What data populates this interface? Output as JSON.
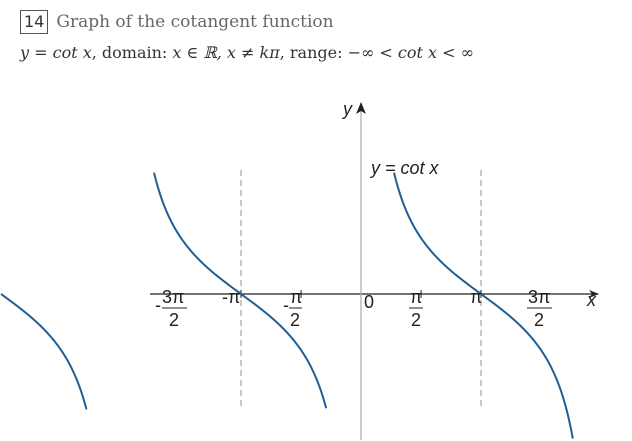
{
  "header": {
    "number": "14",
    "title": "Graph of the cotangent function"
  },
  "formula": {
    "part1": "y = cot x",
    "part2": ", domain: ",
    "part3": "x ∈ ℝ, x ≠ kπ",
    "part4": ", range: ",
    "part5": "−∞ < cot x < ∞"
  },
  "graph": {
    "axis_x_label": "x",
    "axis_y_label": "y",
    "curve_label": "y = cot x",
    "origin_label": "0",
    "neg_pi_label": "-π",
    "pi_label": "π",
    "neg_3pi_over_2": {
      "sign": "-",
      "num": "3π",
      "den": "2"
    },
    "neg_pi_over_2": {
      "sign": "-",
      "num": "π",
      "den": "2"
    },
    "pi_over_2": {
      "num": "π",
      "den": "2"
    },
    "three_pi_over_2": {
      "num": "3π",
      "den": "2"
    },
    "curve_color": "#1f5f96",
    "asymptote_color": "#aaaaaa"
  },
  "chart_data": {
    "type": "line",
    "function": "cot x",
    "x_domain": [
      -4.71,
      4.71
    ],
    "asymptotes": [
      -3.1416,
      0,
      3.1416
    ],
    "x_ticks": [
      "-3π/2",
      "-π",
      "-π/2",
      "0",
      "π/2",
      "π",
      "3π/2"
    ],
    "xlabel": "x",
    "ylabel": "y",
    "label": "y = cot x"
  }
}
